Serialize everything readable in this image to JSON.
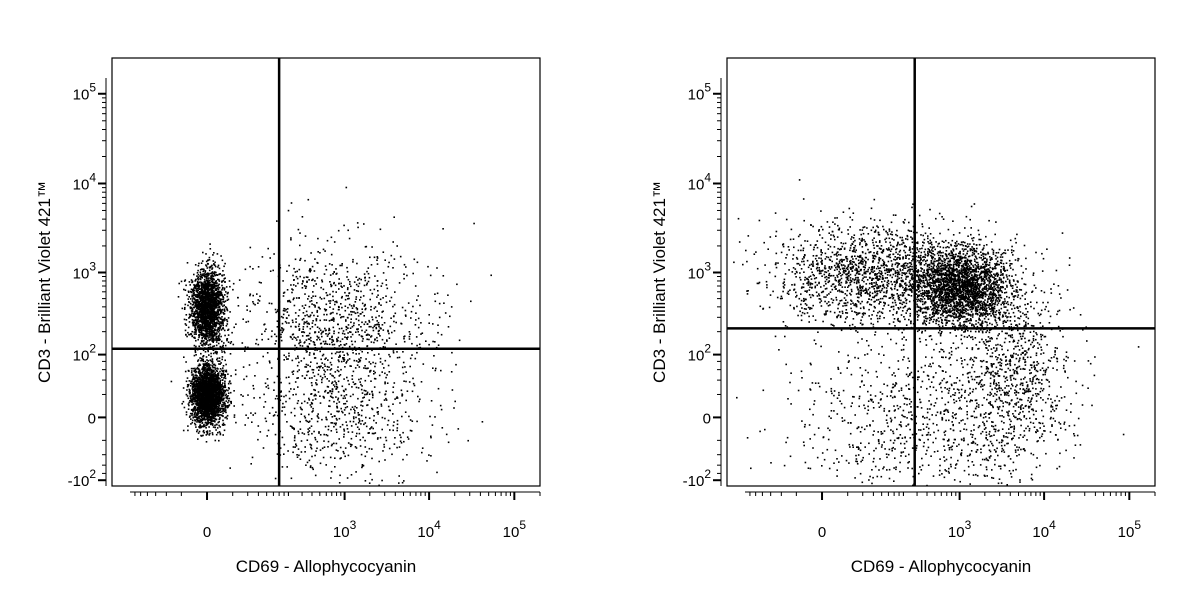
{
  "chart_data": [
    {
      "type": "scatter",
      "style": "pseudocolor density dot plot",
      "xlabel": "CD69 - Allophycocyanin",
      "ylabel": "CD3 - Brilliant Violet 421™",
      "x_scale": "biexponential",
      "y_scale": "biexponential",
      "x_ticks": [
        {
          "value": 0,
          "base": "0",
          "exp": ""
        },
        {
          "value": 1000,
          "base": "10",
          "exp": "3"
        },
        {
          "value": 10000,
          "base": "10",
          "exp": "4"
        },
        {
          "value": 100000,
          "base": "10",
          "exp": "5"
        }
      ],
      "y_ticks": [
        {
          "value": -100,
          "base": "-10",
          "exp": "2"
        },
        {
          "value": 0,
          "base": "0",
          "exp": ""
        },
        {
          "value": 100,
          "base": "10",
          "exp": "2"
        },
        {
          "value": 1000,
          "base": "10",
          "exp": "3"
        },
        {
          "value": 10000,
          "base": "10",
          "exp": "4"
        },
        {
          "value": 100000,
          "base": "10",
          "exp": "5"
        }
      ],
      "quadrant_gate": {
        "x": 150,
        "y": 120
      },
      "populations": [
        {
          "x": 0,
          "y": 20,
          "share": 0.42,
          "peak": "red"
        },
        {
          "x": 0,
          "y": 400,
          "share": 0.32,
          "peak": "orange"
        },
        {
          "x": 800,
          "y": 250,
          "share": 0.17,
          "peak": "blue"
        },
        {
          "x": 900,
          "y": 0,
          "share": 0.09,
          "peak": "blue"
        }
      ]
    },
    {
      "type": "scatter",
      "style": "pseudocolor density dot plot",
      "xlabel": "CD69 - Allophycocyanin",
      "ylabel": "CD3 - Brilliant Violet 421™",
      "x_scale": "biexponential",
      "y_scale": "biexponential",
      "x_ticks": [
        {
          "value": 0,
          "base": "0",
          "exp": ""
        },
        {
          "value": 1000,
          "base": "10",
          "exp": "3"
        },
        {
          "value": 10000,
          "base": "10",
          "exp": "4"
        },
        {
          "value": 100000,
          "base": "10",
          "exp": "5"
        }
      ],
      "y_ticks": [
        {
          "value": -100,
          "base": "-10",
          "exp": "2"
        },
        {
          "value": 0,
          "base": "0",
          "exp": ""
        },
        {
          "value": 100,
          "base": "10",
          "exp": "2"
        },
        {
          "value": 1000,
          "base": "10",
          "exp": "3"
        },
        {
          "value": 10000,
          "base": "10",
          "exp": "4"
        },
        {
          "value": 100000,
          "base": "10",
          "exp": "5"
        }
      ],
      "quadrant_gate": {
        "x": 280,
        "y": 220
      },
      "populations": [
        {
          "x": 1000,
          "y": 700,
          "share": 0.45,
          "peak": "red"
        },
        {
          "x": 60,
          "y": 1000,
          "share": 0.25,
          "peak": "green"
        },
        {
          "x": 4000,
          "y": 60,
          "share": 0.15,
          "peak": "cyan"
        },
        {
          "x": 300,
          "y": 0,
          "share": 0.15,
          "peak": "blue"
        }
      ]
    }
  ]
}
